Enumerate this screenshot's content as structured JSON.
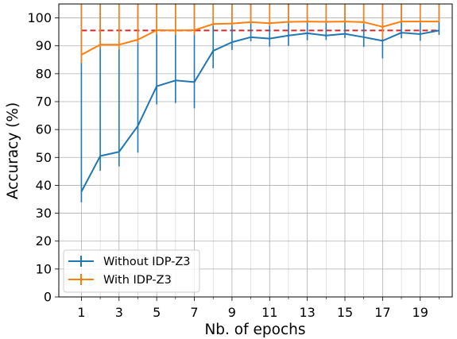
{
  "chart_data": {
    "type": "line",
    "xlabel": "Nb. of epochs",
    "ylabel": "Accuracy (%)",
    "xlim": [
      -0.2,
      20.7
    ],
    "ylim": [
      0,
      105
    ],
    "x_major_ticks": [
      1,
      3,
      5,
      7,
      9,
      11,
      13,
      15,
      17,
      19
    ],
    "x_minor_ticks": [
      2,
      4,
      6,
      8,
      10,
      12,
      14,
      16,
      18,
      20
    ],
    "y_ticks": [
      0,
      10,
      20,
      30,
      40,
      50,
      60,
      70,
      80,
      90,
      100
    ],
    "grid": true,
    "legend_position": "bottom-left",
    "x": [
      1,
      2,
      3,
      4,
      5,
      6,
      7,
      8,
      9,
      10,
      11,
      12,
      13,
      14,
      15,
      16,
      17,
      18,
      19,
      20
    ],
    "series": [
      {
        "name": "Without IDP-Z3",
        "color": "#1f77b4",
        "values": [
          37.7,
          50.5,
          52.0,
          61.3,
          75.5,
          77.6,
          77.0,
          88.2,
          91.3,
          93.1,
          92.6,
          93.7,
          94.5,
          93.7,
          94.3,
          93.1,
          91.8,
          94.7,
          94.2,
          95.5
        ],
        "errors": [
          3.8,
          5.3,
          5.2,
          9.6,
          6.5,
          8.1,
          9.4,
          6.2,
          2.8,
          1.5,
          2.9,
          3.7,
          2.5,
          1.6,
          1.5,
          3.5,
          6.3,
          2.0,
          2.4,
          1.6
        ]
      },
      {
        "name": "With IDP-Z3",
        "color": "#ff7f0e",
        "values": [
          86.8,
          90.4,
          90.4,
          92.2,
          95.6,
          95.5,
          95.6,
          97.8,
          98.0,
          98.5,
          98.1,
          98.6,
          98.7,
          98.6,
          98.7,
          98.5,
          96.8,
          98.7,
          98.7,
          98.7
        ],
        "errors": [
          2.9,
          1.4,
          1.7,
          1.3,
          1.5,
          1.6,
          1.8,
          0.7,
          0.8,
          0.5,
          1.0,
          0.5,
          0.4,
          0.5,
          0.3,
          0.6,
          4.4,
          0.4,
          0.4,
          0.3
        ]
      }
    ],
    "reference_line": {
      "value": 95.5,
      "x_range": [
        1,
        20
      ],
      "color": "#d62728",
      "style": "dashed"
    }
  }
}
